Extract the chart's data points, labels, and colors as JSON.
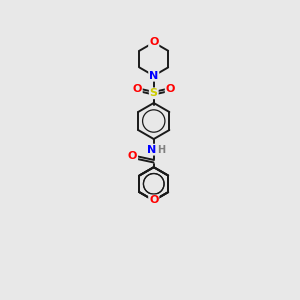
{
  "bg_color": "#e8e8e8",
  "atom_colors": {
    "O": "#ff0000",
    "N": "#0000ff",
    "S": "#cccc00",
    "C": "#000000",
    "H": "#808080"
  },
  "bond_color": "#1a1a1a",
  "bond_width": 1.4
}
